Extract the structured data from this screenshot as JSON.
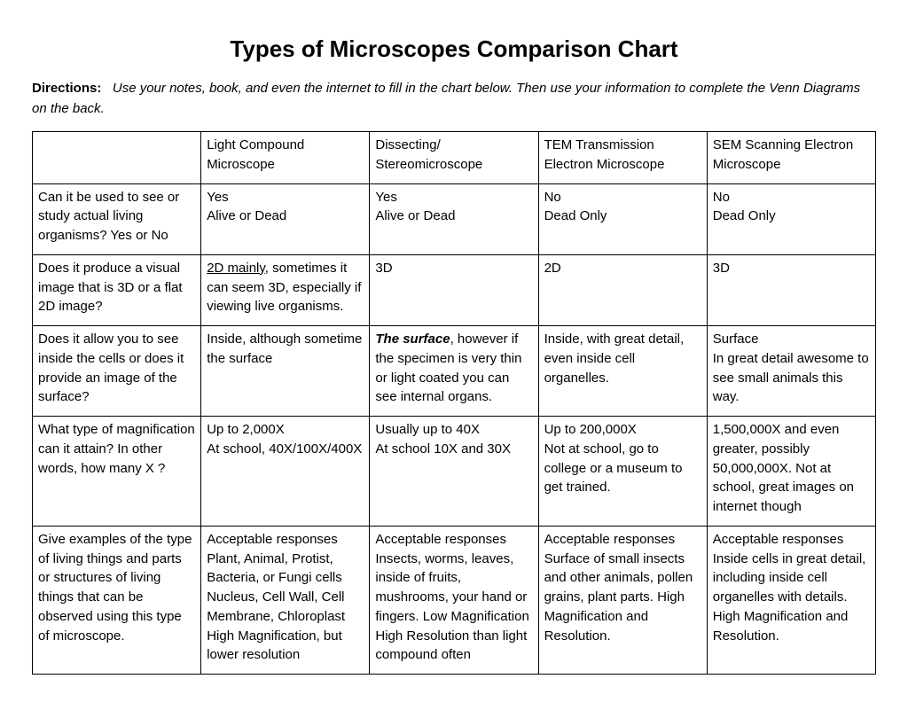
{
  "title": "Types of Microscopes Comparison Chart",
  "directions_label": "Directions:",
  "directions_text": "Use your notes, book, and even the internet to fill in the chart below.  Then use your information to complete the Venn Diagrams on the back.",
  "table": {
    "type": "table",
    "background_color": "#ffffff",
    "border_color": "#000000",
    "font_family": "Comic Sans MS",
    "cell_fontsize": 15,
    "columns": [
      "question",
      "light_compound",
      "dissecting",
      "tem",
      "sem"
    ],
    "header": {
      "question": "",
      "light_compound": "Light Compound Microscope",
      "dissecting": "Dissecting/ Stereomicroscope",
      "tem": "TEM  Transmission Electron Microscope",
      "sem": "SEM  Scanning Electron Microscope"
    },
    "rows": [
      {
        "question": "Can it be used to see or study actual living organisms?  Yes or No",
        "light_compound": "Yes\nAlive or Dead",
        "dissecting": "Yes\nAlive or Dead",
        "tem": "No\nDead Only",
        "sem": "No\nDead Only"
      },
      {
        "question": "Does it produce a visual image that is 3D or a flat 2D image?",
        "light_compound_emph": "2D mainly",
        "light_compound_rest": ", sometimes it can seem 3D, especially if viewing live organisms.",
        "dissecting": "3D",
        "tem": "2D",
        "sem": "3D"
      },
      {
        "question": "Does it allow you to see inside the cells or does it provide an image of the surface?",
        "light_compound": "Inside, although sometime the surface",
        "dissecting_emph": "The surface",
        "dissecting_rest": ", however if the specimen is very thin or light coated you can see internal organs.",
        "tem": "Inside, with great detail, even inside cell organelles.",
        "sem": "Surface\nIn great detail awesome to see small animals this way."
      },
      {
        "question": "What type of magnification can it attain?  In other words, how many  X ?",
        "light_compound": "Up to 2,000X\nAt school, 40X/100X/400X",
        "dissecting": "Usually up to 40X\nAt school 10X and 30X",
        "tem": "Up to 200,000X\nNot at school, go to college or a museum to get trained.",
        "sem": "1,500,000X and even greater, possibly 50,000,000X.  Not at school, great images on internet though"
      },
      {
        "question": "Give examples of the type of living things and parts or structures of living things that can be observed using this type of microscope.",
        "light_compound": "Acceptable responses Plant, Animal, Protist, Bacteria, or Fungi cells Nucleus, Cell Wall, Cell Membrane, Chloroplast High Magnification, but lower resolution",
        "dissecting": "Acceptable responses Insects, worms, leaves, inside of fruits, mushrooms, your hand or fingers.   Low Magnification\nHigh Resolution than light compound often",
        "tem": "Acceptable responses Surface of small insects and other animals, pollen grains, plant parts.  High Magnification and Resolution.",
        "sem": "Acceptable responses Inside cells in great detail, including inside cell organelles with details.  High Magnification and Resolution."
      }
    ]
  }
}
